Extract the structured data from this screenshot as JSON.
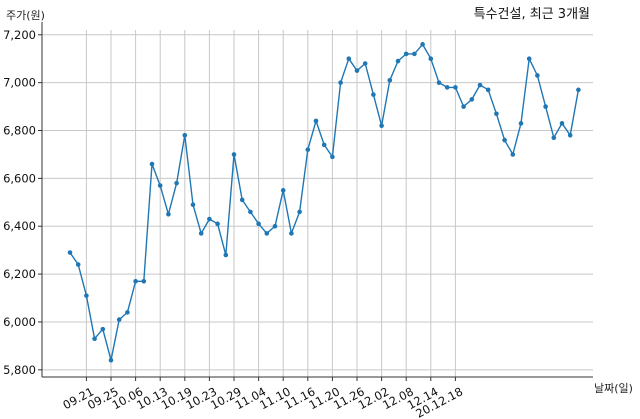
{
  "chart_data": {
    "type": "line",
    "title": "특수건설, 최근 3개월",
    "ylabel": "주가(원)",
    "xlabel": "날짜(일)",
    "ylim": [
      5770,
      7220
    ],
    "y_ticks": [
      5800,
      6000,
      6200,
      6400,
      6600,
      6800,
      7000,
      7200
    ],
    "y_tick_labels": [
      "5,800",
      "6,000",
      "6,200",
      "6,400",
      "6,600",
      "6,800",
      "7,000",
      "7,200"
    ],
    "x_tick_labels": [
      "09.21",
      "09.25",
      "10.06",
      "10.13",
      "10.19",
      "10.23",
      "10.29",
      "11.04",
      "11.10",
      "11.16",
      "11.20",
      "11.26",
      "12.02",
      "12.08",
      "12.14",
      "20.12.18"
    ],
    "x_tick_index": [
      2,
      5,
      8,
      11,
      14,
      17,
      20,
      23,
      26,
      29,
      32,
      35,
      38,
      41,
      44,
      47
    ],
    "grid": true,
    "line_color": "#1f77b4",
    "series": [
      {
        "values": [
          6290,
          6240,
          6110,
          5930,
          5970,
          5840,
          6010,
          6040,
          6170,
          6170,
          6660,
          6570,
          6450,
          6580,
          6780,
          6490,
          6370,
          6430,
          6410,
          6280,
          6700,
          6510,
          6460,
          6410,
          6370,
          6400,
          6550,
          6370,
          6460,
          6720,
          6840,
          6740,
          6690,
          7000,
          7100,
          7050,
          7080,
          6950,
          6820,
          7010,
          7090,
          7120,
          7120,
          7160,
          7100,
          7000,
          6980,
          6980,
          6900,
          6930,
          6990,
          6970,
          6870,
          6760,
          6700,
          6830,
          7100,
          7030,
          6900,
          6770,
          6830,
          6780,
          6970
        ]
      }
    ]
  }
}
